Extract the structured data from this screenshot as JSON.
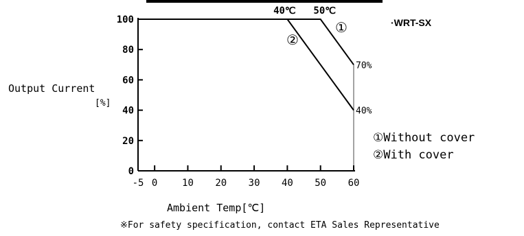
{
  "chart_data": {
    "type": "line",
    "title": "",
    "model": "WRT-SX",
    "xlabel": "Ambient Temp[℃]",
    "ylabel": "Output Current",
    "ylabel_unit": "[%]",
    "xlim": [
      -5,
      60
    ],
    "ylim": [
      0,
      100
    ],
    "xticks": [
      -5,
      0,
      10,
      20,
      30,
      40,
      50,
      60
    ],
    "yticks": [
      0,
      20,
      40,
      60,
      80,
      100
    ],
    "grid": false,
    "series": [
      {
        "name": "①",
        "legend_label": "①Without cover",
        "x": [
          -5,
          50,
          60
        ],
        "y": [
          100,
          100,
          70
        ],
        "end_label": "70%"
      },
      {
        "name": "②",
        "legend_label": "②With cover",
        "x": [
          -5,
          40,
          60
        ],
        "y": [
          100,
          100,
          40
        ],
        "end_label": "40%"
      }
    ],
    "knee_labels": [
      {
        "text": "40℃",
        "x": 40
      },
      {
        "text": "50℃",
        "x": 50
      }
    ],
    "vertical_limit_x": 60,
    "note": "※For safety specification, contact ETA Sales Representative"
  }
}
